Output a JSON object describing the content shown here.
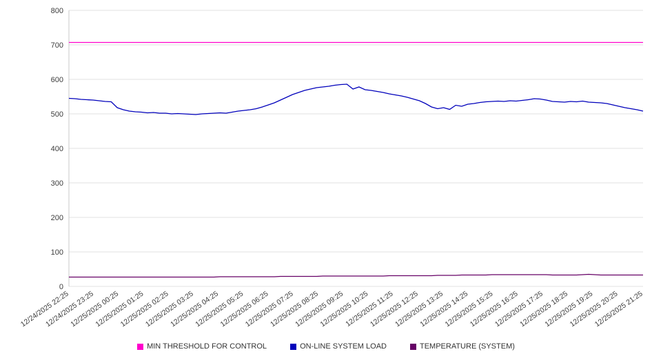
{
  "chart_data": {
    "type": "line",
    "title": "",
    "xlabel": "",
    "ylabel": "",
    "ylim": [
      0,
      800
    ],
    "y_ticks": [
      0,
      100,
      200,
      300,
      400,
      500,
      600,
      700,
      800
    ],
    "grid": true,
    "legend_position": "bottom",
    "categories": [
      "12/24/2025 22:25",
      "12/24/2025 23:25",
      "12/25/2025 00:25",
      "12/25/2025 01:25",
      "12/25/2025 02:25",
      "12/25/2025 03:25",
      "12/25/2025 04:25",
      "12/25/2025 05:25",
      "12/25/2025 06:25",
      "12/25/2025 07:25",
      "12/25/2025 08:25",
      "12/25/2025 09:25",
      "12/25/2025 10:25",
      "12/25/2025 11:25",
      "12/25/2025 12:25",
      "12/25/2025 13:25",
      "12/25/2025 14:25",
      "12/25/2025 15:25",
      "12/25/2025 16:25",
      "12/25/2025 17:25",
      "12/25/2025 18:25",
      "12/25/2025 19:25",
      "12/25/2025 20:25",
      "12/25/2025 21:25"
    ],
    "series": [
      {
        "name": "MIN THRESHOLD FOR CONTROL",
        "color": "#ff00cc",
        "constant": 707
      },
      {
        "name": "ON-LINE SYSTEM LOAD",
        "color": "#0000bb",
        "values": [
          545,
          544,
          542,
          541,
          540,
          538,
          536,
          535,
          518,
          512,
          508,
          506,
          505,
          503,
          504,
          502,
          502,
          500,
          501,
          500,
          499,
          498,
          500,
          501,
          502,
          503,
          502,
          505,
          508,
          510,
          512,
          515,
          520,
          526,
          532,
          540,
          548,
          556,
          562,
          568,
          572,
          576,
          578,
          580,
          583,
          585,
          586,
          572,
          578,
          570,
          568,
          565,
          562,
          558,
          555,
          552,
          548,
          543,
          538,
          530,
          520,
          515,
          518,
          513,
          525,
          522,
          528,
          530,
          533,
          535,
          536,
          537,
          536,
          538,
          537,
          539,
          541,
          544,
          543,
          540,
          536,
          535,
          534,
          536,
          535,
          537,
          534,
          533,
          532,
          530,
          526,
          522,
          518,
          515,
          512,
          508
        ]
      },
      {
        "name": "TEMPERATURE (SYSTEM)",
        "color": "#660066",
        "values": [
          27,
          27,
          27,
          27,
          27,
          27,
          27,
          27,
          27,
          27,
          27,
          27,
          27,
          27,
          27,
          27,
          27,
          27,
          27,
          27,
          27,
          27,
          27,
          27,
          27,
          28,
          28,
          28,
          28,
          28,
          28,
          28,
          28,
          28,
          28,
          29,
          29,
          29,
          29,
          29,
          29,
          29,
          30,
          30,
          30,
          30,
          30,
          30,
          30,
          30,
          30,
          30,
          30,
          31,
          31,
          31,
          31,
          31,
          31,
          31,
          31,
          32,
          32,
          32,
          32,
          33,
          33,
          33,
          33,
          33,
          34,
          34,
          34,
          34,
          34,
          34,
          34,
          34,
          34,
          34,
          33,
          33,
          33,
          33,
          33,
          34,
          35,
          34,
          33,
          33,
          33,
          33,
          33,
          33,
          33,
          33
        ]
      }
    ]
  }
}
